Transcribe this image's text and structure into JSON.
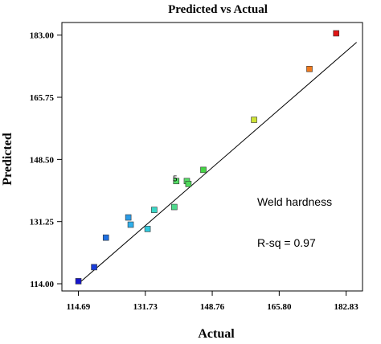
{
  "chart_data": {
    "type": "scatter",
    "title": "Predicted vs Actual",
    "xlabel": "Actual",
    "ylabel": "Predicted",
    "xlim": [
      110.5,
      187.0
    ],
    "ylim": [
      112.0,
      186.5
    ],
    "x_ticks": [
      114.69,
      131.73,
      148.76,
      165.8,
      182.83
    ],
    "x_tick_labels": [
      "114.69",
      "131.73",
      "148.76",
      "165.80",
      "182.83"
    ],
    "y_ticks": [
      114.0,
      131.25,
      148.5,
      165.75,
      183.0
    ],
    "y_tick_labels": [
      "114.00",
      "131.25",
      "148.50",
      "165.75",
      "183.00"
    ],
    "fit_line": [
      [
        114.69,
        114.0
      ],
      [
        185.5,
        181.0
      ]
    ],
    "points": [
      {
        "x": 114.7,
        "y": 114.7,
        "color": "#1515cc"
      },
      {
        "x": 118.7,
        "y": 118.6,
        "color": "#1a3dd9"
      },
      {
        "x": 121.7,
        "y": 126.8,
        "color": "#1f6fe0"
      },
      {
        "x": 127.4,
        "y": 132.4,
        "color": "#2a9be6"
      },
      {
        "x": 128.0,
        "y": 130.4,
        "color": "#2fb0ec"
      },
      {
        "x": 132.3,
        "y": 129.2,
        "color": "#2fc8dc"
      },
      {
        "x": 134.0,
        "y": 134.5,
        "color": "#39d6c6"
      },
      {
        "x": 139.1,
        "y": 135.3,
        "color": "#4fd98c"
      },
      {
        "x": 139.6,
        "y": 142.5,
        "color": "#55dc66"
      },
      {
        "x": 142.3,
        "y": 142.5,
        "color": "#55dc66"
      },
      {
        "x": 142.7,
        "y": 141.7,
        "color": "#4fd85a"
      },
      {
        "x": 146.5,
        "y": 145.6,
        "color": "#45d445"
      },
      {
        "x": 159.4,
        "y": 159.5,
        "color": "#cde235"
      },
      {
        "x": 173.5,
        "y": 173.6,
        "color": "#f07a1e"
      },
      {
        "x": 180.3,
        "y": 183.5,
        "color": "#e01515"
      }
    ],
    "annotations": [
      {
        "text": "Weld hardness",
        "x": 160.2,
        "y": 135.6
      },
      {
        "text": "R-sq = 0.97",
        "x": 160.2,
        "y": 124.3
      },
      {
        "text": "5",
        "x": 139.3,
        "y": 142.4
      }
    ]
  }
}
